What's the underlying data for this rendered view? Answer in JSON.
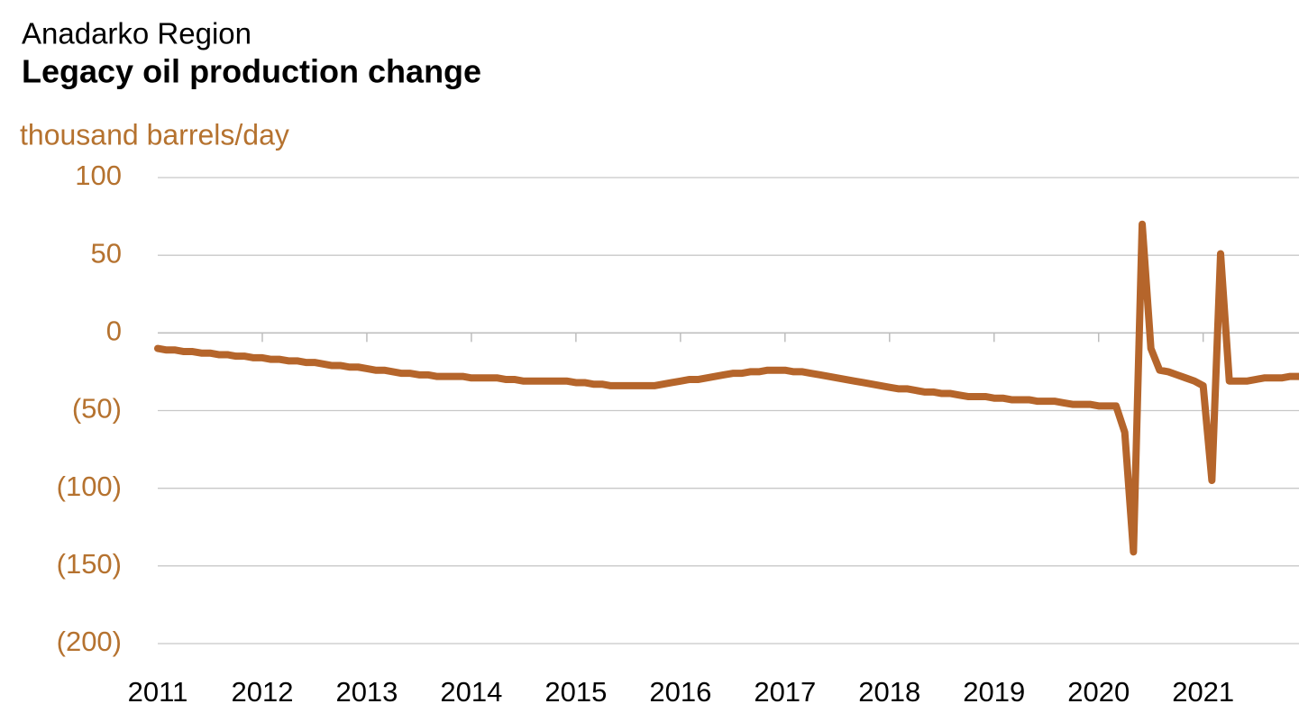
{
  "chart_data": {
    "type": "line",
    "title": "Anadarko Region",
    "subtitle": "Legacy oil production change",
    "y_label": "thousand barrels/day",
    "categories": [
      "2011",
      null,
      null,
      null,
      null,
      null,
      null,
      null,
      null,
      null,
      null,
      null,
      "2012",
      null,
      null,
      null,
      null,
      null,
      null,
      null,
      null,
      null,
      null,
      null,
      "2013",
      null,
      null,
      null,
      null,
      null,
      null,
      null,
      null,
      null,
      null,
      null,
      "2014",
      null,
      null,
      null,
      null,
      null,
      null,
      null,
      null,
      null,
      null,
      null,
      "2015",
      null,
      null,
      null,
      null,
      null,
      null,
      null,
      null,
      null,
      null,
      null,
      "2016",
      null,
      null,
      null,
      null,
      null,
      null,
      null,
      null,
      null,
      null,
      null,
      "2017",
      null,
      null,
      null,
      null,
      null,
      null,
      null,
      null,
      null,
      null,
      null,
      "2018",
      null,
      null,
      null,
      null,
      null,
      null,
      null,
      null,
      null,
      null,
      null,
      "2019",
      null,
      null,
      null,
      null,
      null,
      null,
      null,
      null,
      null,
      null,
      null,
      "2020",
      null,
      null,
      null,
      null,
      null,
      null,
      null,
      null,
      null,
      null,
      null,
      "2021",
      null,
      null,
      null,
      null,
      null,
      null,
      null,
      null,
      null,
      null,
      null
    ],
    "values": [
      -10,
      -11,
      -11,
      -12,
      -12,
      -13,
      -13,
      -14,
      -14,
      -15,
      -15,
      -16,
      -16,
      -17,
      -17,
      -18,
      -18,
      -19,
      -19,
      -20,
      -21,
      -21,
      -22,
      -22,
      -23,
      -24,
      -24,
      -25,
      -26,
      -26,
      -27,
      -27,
      -28,
      -28,
      -28,
      -28,
      -29,
      -29,
      -29,
      -29,
      -30,
      -30,
      -31,
      -31,
      -31,
      -31,
      -31,
      -31,
      -32,
      -32,
      -33,
      -33,
      -34,
      -34,
      -34,
      -34,
      -34,
      -34,
      -33,
      -32,
      -31,
      -30,
      -30,
      -29,
      -28,
      -27,
      -26,
      -26,
      -25,
      -25,
      -24,
      -24,
      -24,
      -25,
      -25,
      -26,
      -27,
      -28,
      -29,
      -30,
      -31,
      -32,
      -33,
      -34,
      -35,
      -36,
      -36,
      -37,
      -38,
      -38,
      -39,
      -39,
      -40,
      -41,
      -41,
      -41,
      -42,
      -42,
      -43,
      -43,
      -43,
      -44,
      -44,
      -44,
      -45,
      -46,
      -46,
      -46,
      -47,
      -47,
      -47,
      -64,
      -141,
      70,
      -10,
      -24,
      -25,
      -27,
      -29,
      -31,
      -34,
      -95,
      51,
      -31,
      -31,
      -31,
      -30,
      -29,
      -29,
      -29,
      -28,
      -28
    ],
    "color": "#b5652b",
    "ylim": [
      -200,
      100
    ],
    "yticks": [
      {
        "value": -200,
        "label": "(200)"
      },
      {
        "value": -150,
        "label": "(150)"
      },
      {
        "value": -100,
        "label": "(100)"
      },
      {
        "value": -50,
        "label": "(50)"
      },
      0,
      50,
      100
    ],
    "grid": true
  }
}
